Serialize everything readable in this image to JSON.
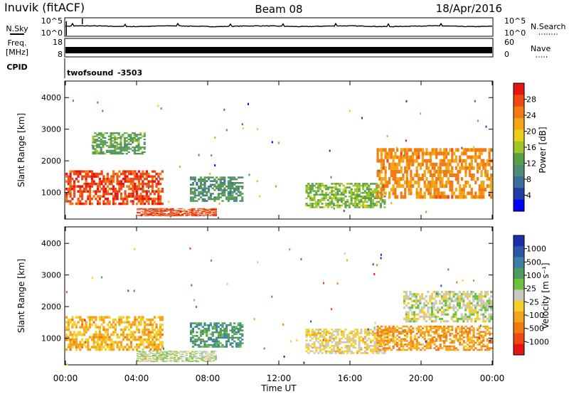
{
  "header": {
    "station": "Inuvik (fitACF)",
    "beam": "Beam 08",
    "date": "18/Apr/2016"
  },
  "noise_panel": {
    "left_label": "N.Sky",
    "left_ticks": [
      "10^5",
      "10^0"
    ],
    "right_ticks": [
      "10^5",
      "10^0"
    ],
    "right_label": "N.Search"
  },
  "freq_panel": {
    "left_label_1": "Freq.",
    "left_label_2": "[MHz]",
    "left_ticks": [
      "18",
      "8"
    ],
    "right_ticks": [
      "60",
      "0"
    ],
    "right_label": "Nave"
  },
  "cpid_panel": {
    "label": "CPID",
    "program": "twofsound",
    "cpid": "-3503"
  },
  "power_panel": {
    "ylabel": "Slant Range [km]",
    "yticks": [
      "4000",
      "3000",
      "2000",
      "1000"
    ],
    "colorbar_label": "Power [dB]",
    "colorbar_ticks": [
      "28",
      "24",
      "20",
      "16",
      "12",
      "8",
      "4"
    ],
    "colors": [
      "#0000ff",
      "#1e3ea8",
      "#3a6f9a",
      "#4f8c72",
      "#58a048",
      "#9fc52a",
      "#e8d018",
      "#f4a614",
      "#f37b14",
      "#ef4a12",
      "#e81410"
    ]
  },
  "velocity_panel": {
    "ylabel": "Slant Range [km]",
    "yticks": [
      "4000",
      "3000",
      "2000",
      "1000"
    ],
    "colorbar_label": "Velocity [m s⁻¹]",
    "colorbar_ticks": [
      "1000",
      "500",
      "100",
      "25",
      "-25",
      "-100",
      "-500",
      "-1000"
    ],
    "colors": [
      "#1a2fb0",
      "#2d55a8",
      "#3c7fa0",
      "#4f9a5e",
      "#6cc23c",
      "#c8c8c0",
      "#f4d02a",
      "#f4a31a",
      "#f27a14",
      "#ee4a10",
      "#e81410"
    ]
  },
  "x_axis": {
    "ticks": [
      "00:00",
      "04:00",
      "08:00",
      "12:00",
      "16:00",
      "20:00",
      "00:00"
    ],
    "label": "Time UT"
  },
  "chart_data": [
    {
      "type": "line",
      "title": "",
      "xlabel": "",
      "ylabel": "N.Sky",
      "yscale": "log",
      "ylim": [
        1,
        100000
      ],
      "x": [
        "00:00",
        "04:00",
        "08:00",
        "12:00",
        "16:00",
        "20:00",
        "00:00"
      ],
      "series": [
        {
          "values": [
            1000,
            1000,
            1200,
            1000,
            1100,
            1000,
            1000
          ]
        }
      ]
    },
    {
      "type": "line",
      "title": "",
      "xlabel": "",
      "ylabel": "Freq. [MHz]",
      "ylim": [
        8,
        18
      ],
      "x": [
        "00:00",
        "04:00",
        "08:00",
        "12:00",
        "16:00",
        "20:00",
        "00:00"
      ],
      "series": [
        {
          "values": [
            10.5,
            10.5,
            10.5,
            10.5,
            10.5,
            10.5,
            10.5
          ]
        }
      ]
    },
    {
      "type": "heatmap",
      "title": "",
      "xlabel": "Time UT",
      "ylabel": "Slant Range [km]",
      "xlim": [
        "00:00",
        "00:00"
      ],
      "ylim": [
        180,
        4500
      ],
      "colorbar": {
        "label": "Power [dB]",
        "range": [
          0,
          30
        ],
        "ticks": [
          4,
          8,
          12,
          16,
          20,
          24,
          28
        ]
      },
      "echo_regions": [
        {
          "t_start_h": 0.0,
          "t_end_h": 5.5,
          "range_km": [
            600,
            1700
          ],
          "value": 26
        },
        {
          "t_start_h": 4.0,
          "t_end_h": 8.5,
          "range_km": [
            250,
            500
          ],
          "value": 26
        },
        {
          "t_start_h": 1.5,
          "t_end_h": 4.5,
          "range_km": [
            2200,
            2900
          ],
          "value": 12
        },
        {
          "t_start_h": 7.0,
          "t_end_h": 10.0,
          "range_km": [
            700,
            1500
          ],
          "value": 10
        },
        {
          "t_start_h": 13.5,
          "t_end_h": 18.0,
          "range_km": [
            500,
            1300
          ],
          "value": 14
        },
        {
          "t_start_h": 17.5,
          "t_end_h": 24.0,
          "range_km": [
            800,
            2400
          ],
          "value": 22
        }
      ]
    },
    {
      "type": "heatmap",
      "title": "",
      "xlabel": "Time UT",
      "ylabel": "Slant Range [km]",
      "xlim": [
        "00:00",
        "00:00"
      ],
      "ylim": [
        180,
        4500
      ],
      "colorbar": {
        "label": "Velocity [m s⁻¹]",
        "range": [
          -1000,
          1000
        ],
        "ticks": [
          1000,
          500,
          100,
          25,
          -25,
          -100,
          -500,
          -1000
        ]
      },
      "echo_regions": [
        {
          "t_start_h": 0.0,
          "t_end_h": 5.5,
          "range_km": [
            600,
            1700
          ],
          "value": -300
        },
        {
          "t_start_h": 4.0,
          "t_end_h": 8.5,
          "range_km": [
            250,
            600
          ],
          "value": 50
        },
        {
          "t_start_h": 7.0,
          "t_end_h": 10.0,
          "range_km": [
            700,
            1500
          ],
          "value": 400
        },
        {
          "t_start_h": 13.5,
          "t_end_h": 18.0,
          "range_km": [
            500,
            1300
          ],
          "value": -150
        },
        {
          "t_start_h": 17.5,
          "t_end_h": 24.0,
          "range_km": [
            600,
            1400
          ],
          "value": -400
        },
        {
          "t_start_h": 19.0,
          "t_end_h": 24.0,
          "range_km": [
            1500,
            2500
          ],
          "value": 0
        }
      ]
    }
  ]
}
